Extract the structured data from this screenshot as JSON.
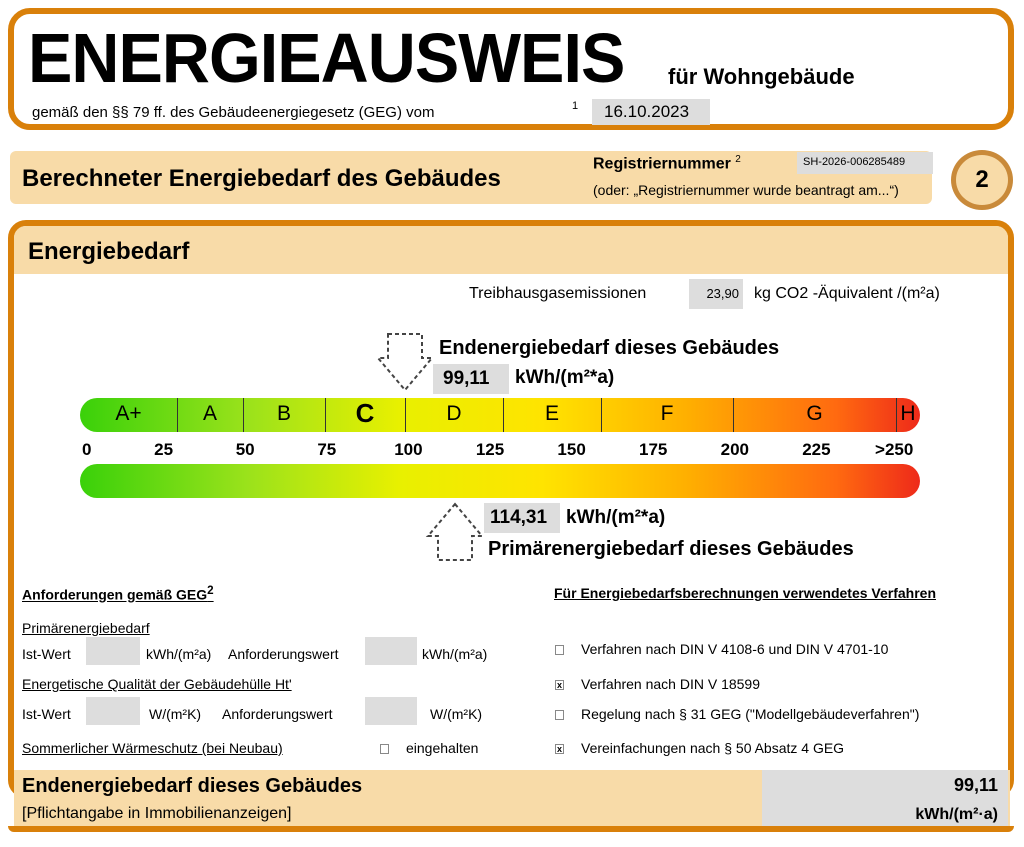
{
  "header": {
    "title": "ENERGIEAUSWEIS",
    "subtitle": "für Wohngebäude",
    "law": "gemäß den §§ 79 ff. des Gebäudeenergiegesetz (GEG) vom",
    "footnote": "1",
    "date": "16.10.2023"
  },
  "section": {
    "title": "Berechneter Energiebedarf des Gebäudes",
    "reg_label": "Registriernummer",
    "reg_sup": "2",
    "reg_value": "SH-2026-006285489",
    "reg_hint": "(oder: „Registriernummer wurde beantragt am...“)",
    "page": "2"
  },
  "energie": {
    "title": "Energiebedarf",
    "ghg_label": "Treibhausgasemissionen",
    "ghg_value": "23,90",
    "ghg_unit": "kg CO2 -Äquivalent /(m²a)",
    "end_label": "Endenergiebedarf dieses Gebäudes",
    "end_value": "99,11",
    "end_unit": "kWh/(m²*a)",
    "prim_label": "Primärenergiebedarf dieses Gebäudes",
    "prim_value": "114,31",
    "prim_unit": "kWh/(m²*a)",
    "classes": [
      "A+",
      "A",
      "B",
      "C",
      "D",
      "E",
      "F",
      "G",
      "H"
    ],
    "current_class": "C",
    "ticks": [
      "0",
      "25",
      "50",
      "75",
      "100",
      "125",
      "150",
      "175",
      "200",
      "225",
      ">250"
    ],
    "end_numeric": 99.11,
    "prim_numeric": 114.31
  },
  "req": {
    "title": "Anforderungen gemäß GEG",
    "sup": "2",
    "prim": "Primärenergiebedarf",
    "ist": "Ist-Wert",
    "unit1": "kWh/(m²a)",
    "anf": "Anforderungswert",
    "hull": "Energetische Qualität der Gebäudehülle Ht'",
    "unit2": "W/(m²K)",
    "summer": "Sommerlicher Wärmeschutz (bei Neubau)",
    "summer_state": "eingehalten"
  },
  "verf": {
    "title": "Für Energiebedarfsberechnungen verwendetes Verfahren",
    "items": [
      {
        "label": "Verfahren nach DIN V 4108-6 und DIN V 4701-10",
        "checked": false
      },
      {
        "label": "Verfahren nach DIN V 18599",
        "checked": true
      },
      {
        "label": "Regelung nach § 31 GEG (\"Modellgebäudeverfahren\")",
        "checked": false
      },
      {
        "label": "Vereinfachungen nach § 50 Absatz 4 GEG",
        "checked": true
      }
    ]
  },
  "footer": {
    "title": "Endenergiebedarf dieses Gebäudes",
    "note": "[Pflichtangabe in Immobilienanzeigen]",
    "value": "99,11",
    "unit": "kWh/(m²·a)"
  }
}
